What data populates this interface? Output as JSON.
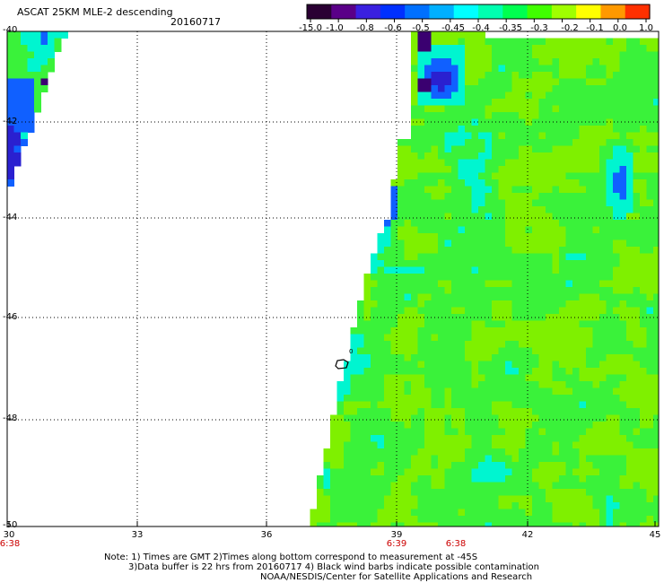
{
  "header": {
    "title": "ASCAT 25KM MLE-2 descending",
    "date": "20160717"
  },
  "colorbar": {
    "labels": [
      "-15.0",
      "-1.0",
      "-0.8",
      "-0.6",
      "-0.5",
      "-0.45",
      "-0.4",
      "-0.35",
      "-0.3",
      "-0.2",
      "-0.1",
      "0.0",
      "1.0"
    ],
    "colors": [
      "#2a0033",
      "#5a0088",
      "#3a20e0",
      "#0030ff",
      "#0070ff",
      "#00b0ff",
      "#00ffff",
      "#00ffb0",
      "#00ff50",
      "#40ff00",
      "#a0ff00",
      "#ffff00",
      "#ff9900",
      "#ff3000"
    ]
  },
  "axes": {
    "latitude_labels": [
      "-40",
      "-42",
      "-44",
      "-46",
      "-48",
      "-50"
    ],
    "longitude_labels": [
      "30",
      "33",
      "36",
      "39",
      "42",
      "45"
    ],
    "time_labels": [
      "6:38",
      "6:39",
      "6:38"
    ]
  },
  "notes": {
    "line1": "Note: 1) Times are GMT 2)Times along bottom correspond to measurement at -45S",
    "line2": "3)Data buffer is 22 hrs from 20160717 4) Black wind barbs indicate possible contamination",
    "line3": "NOAA/NESDIS/Center for Satellite Applications and Research"
  },
  "map_colors": {
    "swath_green": "#3af23a",
    "swath_lime": "#7ff000",
    "swath_cyan": "#00f5d0",
    "swath_blue": "#1060ff",
    "swath_dark_blue": "#2a20d0",
    "swath_purple": "#3a0070"
  }
}
